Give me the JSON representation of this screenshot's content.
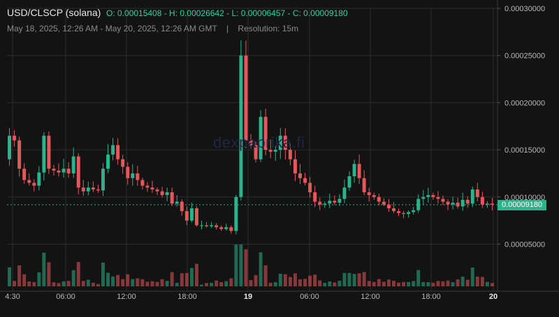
{
  "header": {
    "symbol": "USD/CLSCP (solana)",
    "ohlc_text": "O: 0.00015408 - H: 0.00026642 - L: 0.00006457 - C: 0.00009180",
    "range_text": "May 18, 2025, 12:26 AM - May 20, 2025, 12:26 AM GMT",
    "separator": "|",
    "resolution_text": "Resolution: 15m"
  },
  "watermark": "dexpaprika.fi",
  "colors": {
    "background": "#131313",
    "up": "#2bb38b",
    "down": "#e5575c",
    "grid": "#2c2c2c",
    "axis_text": "#b8b8b8"
  },
  "chart_data": {
    "type": "candlestick",
    "y_axis_ticks": [
      "0.00030000",
      "0.00025000",
      "0.00020000",
      "0.00015000",
      "0.00010000",
      "0.00005000"
    ],
    "y_tick_values": [
      0.0003,
      0.00025,
      0.0002,
      0.00015,
      0.0001,
      5e-05
    ],
    "ylim": [
      1e-07,
      0.0003
    ],
    "x_axis_ticks": [
      {
        "label": "4:30",
        "bold": false
      },
      {
        "label": "06:00",
        "bold": false
      },
      {
        "label": "12:00",
        "bold": false
      },
      {
        "label": "18:00",
        "bold": false
      },
      {
        "label": "19",
        "bold": true
      },
      {
        "label": "06:00",
        "bold": false
      },
      {
        "label": "12:00",
        "bold": false
      },
      {
        "label": "18:00",
        "bold": false
      },
      {
        "label": "20",
        "bold": true
      }
    ],
    "last_price_label": "0.00009180",
    "last_price": 9.18e-05,
    "open": 0.00015408,
    "high": 0.00026642,
    "low": 6.457e-05,
    "close": 9.18e-05,
    "price_path": [
      0.00014,
      0.000165,
      0.00016,
      0.00013,
      0.000118,
      0.000115,
      0.000112,
      0.000126,
      0.000165,
      0.00013,
      0.000128,
      0.000126,
      0.00013,
      0.000125,
      0.000143,
      0.00011,
      0.000106,
      0.00011,
      0.000108,
      0.000107,
      0.00013,
      0.000145,
      0.000155,
      0.00014,
      0.000132,
      0.00012,
      0.000125,
      0.000118,
      0.000112,
      0.00011,
      0.000108,
      0.000106,
      0.000102,
      0.000105,
      9.3e-05,
      9.5e-05,
      8.5e-05,
      7.5e-05,
      8.8e-05,
      7e-05,
      7e-05,
      6.9e-05,
      7e-05,
      6.8e-05,
      6.6e-05,
      6.8e-05,
      6.4e-05,
      0.0001,
      0.00025,
      0.00016,
      0.000155,
      0.00014,
      0.000185,
      0.00015,
      0.000148,
      0.00015,
      0.000165,
      0.00015,
      0.00014,
      0.000125,
      0.00012,
      0.000115,
      0.000105,
      9.5e-05,
      9.2e-05,
      9.3e-05,
      9.6e-05,
      9.4e-05,
      9.8e-05,
      0.00011,
      0.000122,
      0.000135,
      0.00012,
      0.000105,
      0.000102,
      0.0001,
      9.5e-05,
      9.2e-05,
      8.8e-05,
      8.5e-05,
      8.3e-05,
      8.2e-05,
      8.4e-05,
      8.6e-05,
      9.8e-05,
      0.0001,
      0.000102,
      0.0001,
      9.8e-05,
      9.5e-05,
      9.2e-05,
      9.4e-05,
      9e-05,
      9.7e-05,
      9.3e-05,
      0.000108,
      0.0001,
      9.2e-05,
      9.3e-05,
      9.2e-05
    ]
  }
}
